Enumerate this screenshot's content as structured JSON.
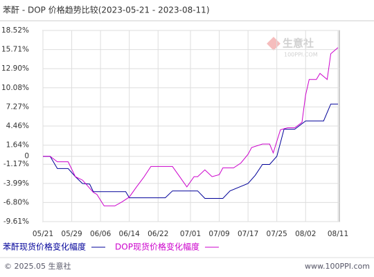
{
  "chart_data": {
    "type": "line",
    "title": "苯酐 - DOP 价格趋势比较(2023-05-21 - 2023-08-11)",
    "ylim": [
      -9.61,
      18.52
    ],
    "yticks": [
      {
        "value": 18.52,
        "label": "18.52%"
      },
      {
        "value": 15.71,
        "label": "15.71%"
      },
      {
        "value": 12.9,
        "label": "12.90%"
      },
      {
        "value": 10.08,
        "label": "10.08%"
      },
      {
        "value": 7.27,
        "label": "7.27%"
      },
      {
        "value": 4.46,
        "label": "4.46%"
      },
      {
        "value": 1.64,
        "label": "1.64%"
      },
      0,
      {
        "value": -1.17,
        "label": "-1.17%"
      },
      {
        "value": -3.99,
        "label": "-3.99%"
      },
      {
        "value": -6.8,
        "label": "-6.80%"
      },
      {
        "value": -9.61,
        "label": "-9.61%"
      }
    ],
    "xticks": [
      "05/21",
      "05/29",
      "06/06",
      "06/14",
      "06/22",
      "07/01",
      "07/09",
      "07/17",
      "07/25",
      "08/02",
      "08/11"
    ],
    "grid": true,
    "series": [
      {
        "name": "苯酐现货价格变化幅度",
        "color": "#000099",
        "x": [
          "05/21",
          "05/23",
          "05/25",
          "05/28",
          "05/30",
          "06/01",
          "06/03",
          "06/04",
          "06/13",
          "06/14",
          "06/24",
          "06/26",
          "07/03",
          "07/05",
          "07/10",
          "07/12",
          "07/17",
          "07/19",
          "07/21",
          "07/23",
          "07/25",
          "07/27",
          "07/30",
          "08/02",
          "08/07",
          "08/09",
          "08/11"
        ],
        "values": [
          0,
          0,
          -1.8,
          -1.8,
          -3,
          -4,
          -4.1,
          -5.2,
          -5.2,
          -6.1,
          -6.1,
          -5.1,
          -5.1,
          -6.2,
          -6.2,
          -5.1,
          -4,
          -2.8,
          -1.2,
          -1.2,
          0,
          4,
          4,
          5.2,
          5.2,
          7.7,
          7.7
        ]
      },
      {
        "name": "DOP现货价格变化幅度",
        "color": "#cc00cc",
        "x": [
          "05/21",
          "05/23",
          "05/25",
          "05/28",
          "05/30",
          "06/01",
          "06/02",
          "06/04",
          "06/05",
          "06/07",
          "06/10",
          "06/12",
          "06/14",
          "06/16",
          "06/18",
          "06/20",
          "06/26",
          "06/28",
          "06/30",
          "07/02",
          "07/03",
          "07/05",
          "07/07",
          "07/09",
          "07/10",
          "07/13",
          "07/15",
          "07/17",
          "07/18",
          "07/21",
          "07/23",
          "07/24",
          "07/26",
          "07/28",
          "07/30",
          "08/01",
          "08/02",
          "08/03",
          "08/05",
          "08/06",
          "08/08",
          "08/09",
          "08/11"
        ],
        "values": [
          0,
          0,
          -0.8,
          -0.8,
          -3,
          -3.5,
          -4.1,
          -5.3,
          -5.6,
          -7.3,
          -7.3,
          -6.7,
          -6,
          -4.5,
          -3.1,
          -1.5,
          -1.5,
          -3,
          -4.5,
          -3,
          -3,
          -2,
          -3,
          -2.7,
          -1.7,
          -1.7,
          -1,
          0.3,
          1.3,
          1.8,
          1.8,
          0.5,
          3.9,
          4.2,
          4.2,
          5,
          9,
          11.3,
          11.3,
          12.2,
          11.3,
          15.1,
          16
        ]
      }
    ],
    "watermark": {
      "name": "生意社",
      "site": "100PPI.COM"
    },
    "footer": {
      "copyright": "© 2025.05 生意社",
      "website": "www.100PPI.com"
    }
  }
}
